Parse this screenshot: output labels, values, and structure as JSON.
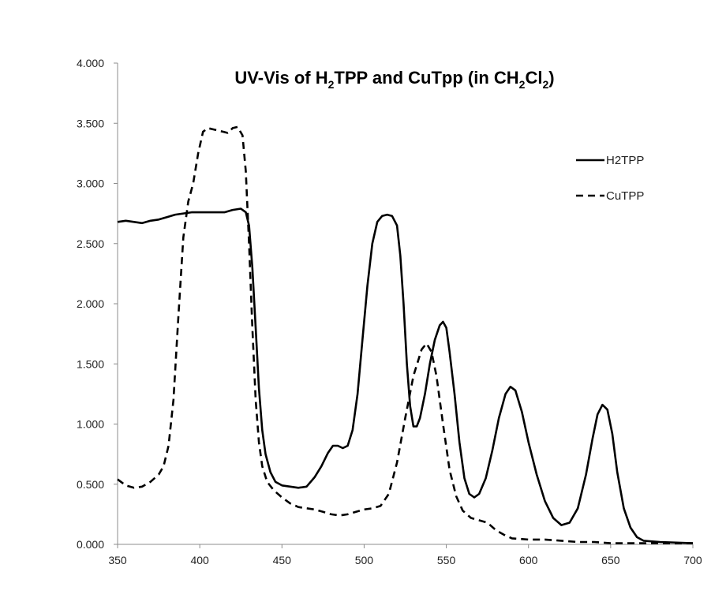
{
  "chart_data": {
    "type": "line",
    "title": {
      "parts": [
        {
          "text": "UV-Vis of H"
        },
        {
          "text": "2",
          "sub": true
        },
        {
          "text": "TPP and CuTpp (in CH"
        },
        {
          "text": "2",
          "sub": true
        },
        {
          "text": "Cl"
        },
        {
          "text": "2",
          "sub": true
        },
        {
          "text": ")"
        }
      ]
    },
    "xlabel": "",
    "ylabel": "",
    "xlim": [
      350,
      700
    ],
    "ylim": [
      0,
      4
    ],
    "x_ticks": [
      "350",
      "400",
      "450",
      "500",
      "550",
      "600",
      "650",
      "700"
    ],
    "y_ticks": [
      "0.000",
      "0.500",
      "1.000",
      "1.500",
      "2.000",
      "2.500",
      "3.000",
      "3.500",
      "4.000"
    ],
    "legend_position": "right",
    "grid": false,
    "series": [
      {
        "name": "H2TPP",
        "style": "solid",
        "color": "#000000",
        "points": [
          [
            350,
            2.68
          ],
          [
            355,
            2.69
          ],
          [
            360,
            2.68
          ],
          [
            365,
            2.67
          ],
          [
            370,
            2.69
          ],
          [
            375,
            2.7
          ],
          [
            380,
            2.72
          ],
          [
            385,
            2.74
          ],
          [
            390,
            2.75
          ],
          [
            395,
            2.76
          ],
          [
            400,
            2.76
          ],
          [
            405,
            2.76
          ],
          [
            410,
            2.76
          ],
          [
            415,
            2.76
          ],
          [
            420,
            2.78
          ],
          [
            425,
            2.79
          ],
          [
            428,
            2.76
          ],
          [
            430,
            2.65
          ],
          [
            432,
            2.3
          ],
          [
            434,
            1.8
          ],
          [
            436,
            1.3
          ],
          [
            438,
            0.95
          ],
          [
            440,
            0.75
          ],
          [
            443,
            0.6
          ],
          [
            446,
            0.52
          ],
          [
            450,
            0.49
          ],
          [
            455,
            0.48
          ],
          [
            460,
            0.47
          ],
          [
            465,
            0.48
          ],
          [
            470,
            0.56
          ],
          [
            474,
            0.65
          ],
          [
            478,
            0.76
          ],
          [
            481,
            0.82
          ],
          [
            484,
            0.82
          ],
          [
            487,
            0.8
          ],
          [
            490,
            0.82
          ],
          [
            493,
            0.95
          ],
          [
            496,
            1.25
          ],
          [
            499,
            1.7
          ],
          [
            502,
            2.15
          ],
          [
            505,
            2.5
          ],
          [
            508,
            2.68
          ],
          [
            511,
            2.73
          ],
          [
            514,
            2.74
          ],
          [
            517,
            2.73
          ],
          [
            520,
            2.65
          ],
          [
            522,
            2.4
          ],
          [
            524,
            2.0
          ],
          [
            526,
            1.5
          ],
          [
            528,
            1.15
          ],
          [
            530,
            0.98
          ],
          [
            532,
            0.98
          ],
          [
            534,
            1.05
          ],
          [
            537,
            1.25
          ],
          [
            540,
            1.5
          ],
          [
            543,
            1.7
          ],
          [
            546,
            1.82
          ],
          [
            548,
            1.85
          ],
          [
            550,
            1.8
          ],
          [
            552,
            1.6
          ],
          [
            555,
            1.25
          ],
          [
            558,
            0.85
          ],
          [
            561,
            0.55
          ],
          [
            564,
            0.42
          ],
          [
            567,
            0.39
          ],
          [
            570,
            0.42
          ],
          [
            574,
            0.55
          ],
          [
            578,
            0.78
          ],
          [
            582,
            1.05
          ],
          [
            586,
            1.25
          ],
          [
            589,
            1.31
          ],
          [
            592,
            1.28
          ],
          [
            596,
            1.1
          ],
          [
            600,
            0.85
          ],
          [
            605,
            0.58
          ],
          [
            610,
            0.36
          ],
          [
            615,
            0.22
          ],
          [
            620,
            0.16
          ],
          [
            625,
            0.18
          ],
          [
            630,
            0.3
          ],
          [
            635,
            0.58
          ],
          [
            639,
            0.88
          ],
          [
            642,
            1.08
          ],
          [
            645,
            1.16
          ],
          [
            648,
            1.12
          ],
          [
            651,
            0.92
          ],
          [
            654,
            0.6
          ],
          [
            658,
            0.3
          ],
          [
            662,
            0.14
          ],
          [
            666,
            0.06
          ],
          [
            670,
            0.03
          ],
          [
            680,
            0.02
          ],
          [
            700,
            0.01
          ]
        ]
      },
      {
        "name": "CuTPP",
        "style": "dashed",
        "color": "#000000",
        "points": [
          [
            350,
            0.54
          ],
          [
            355,
            0.49
          ],
          [
            360,
            0.47
          ],
          [
            365,
            0.48
          ],
          [
            370,
            0.52
          ],
          [
            375,
            0.58
          ],
          [
            378,
            0.65
          ],
          [
            381,
            0.82
          ],
          [
            384,
            1.2
          ],
          [
            387,
            1.9
          ],
          [
            390,
            2.55
          ],
          [
            393,
            2.85
          ],
          [
            396,
            3.0
          ],
          [
            399,
            3.25
          ],
          [
            402,
            3.43
          ],
          [
            405,
            3.46
          ],
          [
            408,
            3.45
          ],
          [
            411,
            3.44
          ],
          [
            414,
            3.43
          ],
          [
            417,
            3.42
          ],
          [
            420,
            3.46
          ],
          [
            423,
            3.47
          ],
          [
            426,
            3.4
          ],
          [
            428,
            3.1
          ],
          [
            430,
            2.5
          ],
          [
            432,
            1.8
          ],
          [
            434,
            1.2
          ],
          [
            436,
            0.85
          ],
          [
            438,
            0.65
          ],
          [
            441,
            0.52
          ],
          [
            445,
            0.45
          ],
          [
            450,
            0.39
          ],
          [
            455,
            0.34
          ],
          [
            460,
            0.31
          ],
          [
            470,
            0.29
          ],
          [
            475,
            0.27
          ],
          [
            480,
            0.25
          ],
          [
            485,
            0.24
          ],
          [
            490,
            0.25
          ],
          [
            495,
            0.27
          ],
          [
            500,
            0.29
          ],
          [
            505,
            0.3
          ],
          [
            510,
            0.32
          ],
          [
            515,
            0.42
          ],
          [
            520,
            0.68
          ],
          [
            525,
            1.05
          ],
          [
            530,
            1.4
          ],
          [
            535,
            1.62
          ],
          [
            538,
            1.67
          ],
          [
            541,
            1.6
          ],
          [
            544,
            1.4
          ],
          [
            548,
            1.0
          ],
          [
            552,
            0.62
          ],
          [
            556,
            0.4
          ],
          [
            560,
            0.28
          ],
          [
            565,
            0.22
          ],
          [
            570,
            0.2
          ],
          [
            575,
            0.18
          ],
          [
            580,
            0.12
          ],
          [
            585,
            0.08
          ],
          [
            590,
            0.05
          ],
          [
            600,
            0.04
          ],
          [
            610,
            0.04
          ],
          [
            620,
            0.03
          ],
          [
            630,
            0.02
          ],
          [
            640,
            0.02
          ],
          [
            650,
            0.01
          ],
          [
            660,
            0.01
          ],
          [
            680,
            0.01
          ],
          [
            700,
            0.01
          ]
        ]
      }
    ]
  }
}
